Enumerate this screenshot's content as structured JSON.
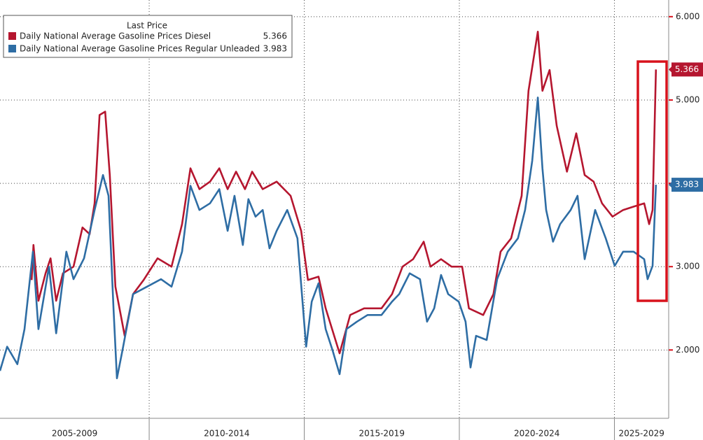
{
  "chart_data": {
    "type": "line",
    "legend_title": "Last Price",
    "series": [
      {
        "name": "Daily National Average Gasoline Prices Diesel",
        "color": "#b5162f",
        "x": [
          2006.21,
          2006.27,
          2006.43,
          2006.66,
          2006.82,
          2007.0,
          2007.22,
          2007.56,
          2007.85,
          2008.08,
          2008.24,
          2008.4,
          2008.58,
          2008.73,
          2008.91,
          2009.21,
          2009.48,
          2009.82,
          2010.27,
          2010.72,
          2011.06,
          2011.33,
          2011.62,
          2011.96,
          2012.26,
          2012.53,
          2012.8,
          2013.09,
          2013.32,
          2013.66,
          2014.11,
          2014.56,
          2014.9,
          2015.12,
          2015.46,
          2015.69,
          2016.14,
          2016.48,
          2016.93,
          2017.49,
          2017.83,
          2018.17,
          2018.51,
          2018.85,
          2019.07,
          2019.41,
          2019.75,
          2020.09,
          2020.31,
          2020.77,
          2021.1,
          2021.33,
          2021.67,
          2022.01,
          2022.23,
          2022.53,
          2022.68,
          2022.91,
          2023.14,
          2023.47,
          2023.77,
          2024.04,
          2024.33,
          2024.6,
          2024.94,
          2025.28,
          2025.62,
          2025.96,
          2026.12,
          2026.23,
          2026.34
        ],
        "values": [
          2.84,
          3.26,
          2.59,
          2.92,
          3.1,
          2.59,
          2.92,
          3.0,
          3.47,
          3.39,
          3.76,
          4.82,
          4.86,
          4.1,
          2.76,
          2.17,
          2.67,
          2.84,
          3.1,
          3.0,
          3.51,
          4.18,
          3.93,
          4.02,
          4.18,
          3.93,
          4.14,
          3.93,
          4.14,
          3.93,
          4.02,
          3.85,
          3.43,
          2.84,
          2.88,
          2.5,
          1.96,
          2.42,
          2.5,
          2.5,
          2.67,
          3.0,
          3.09,
          3.3,
          3.0,
          3.09,
          3.0,
          3.0,
          2.5,
          2.42,
          2.67,
          3.18,
          3.34,
          3.85,
          5.11,
          5.82,
          5.11,
          5.36,
          4.69,
          4.14,
          4.6,
          4.1,
          4.02,
          3.76,
          3.6,
          3.68,
          3.72,
          3.76,
          3.51,
          3.68,
          5.366
        ]
      },
      {
        "name": "Daily National Average Gasoline Prices Regular Unleaded",
        "color": "#2e6da4",
        "x": [
          2005.19,
          2005.42,
          2005.75,
          2005.98,
          2006.25,
          2006.43,
          2006.77,
          2007.0,
          2007.33,
          2007.56,
          2007.9,
          2008.24,
          2008.51,
          2008.69,
          2008.85,
          2008.96,
          2009.14,
          2009.48,
          2009.93,
          2010.38,
          2010.72,
          2011.06,
          2011.33,
          2011.62,
          2011.96,
          2012.26,
          2012.53,
          2012.75,
          2013.02,
          2013.2,
          2013.43,
          2013.66,
          2013.88,
          2014.11,
          2014.45,
          2014.78,
          2015.06,
          2015.24,
          2015.46,
          2015.69,
          2015.91,
          2016.14,
          2016.36,
          2016.7,
          2017.04,
          2017.49,
          2017.83,
          2018.06,
          2018.4,
          2018.73,
          2018.96,
          2019.19,
          2019.41,
          2019.64,
          2019.98,
          2020.2,
          2020.36,
          2020.54,
          2020.88,
          2021.22,
          2021.56,
          2021.89,
          2022.12,
          2022.35,
          2022.53,
          2022.68,
          2022.8,
          2023.02,
          2023.25,
          2023.59,
          2023.81,
          2024.04,
          2024.38,
          2024.72,
          2025.01,
          2025.28,
          2025.62,
          2025.96,
          2026.07,
          2026.23,
          2026.34
        ],
        "values": [
          1.75,
          2.04,
          1.83,
          2.25,
          3.18,
          2.25,
          3.0,
          2.2,
          3.18,
          2.85,
          3.1,
          3.68,
          4.1,
          3.85,
          2.5,
          1.66,
          2.0,
          2.67,
          2.76,
          2.85,
          2.76,
          3.18,
          3.97,
          3.68,
          3.76,
          3.93,
          3.43,
          3.85,
          3.26,
          3.81,
          3.6,
          3.68,
          3.22,
          3.43,
          3.68,
          3.34,
          2.04,
          2.58,
          2.8,
          2.25,
          2.0,
          1.71,
          2.25,
          2.34,
          2.42,
          2.42,
          2.58,
          2.67,
          2.92,
          2.85,
          2.34,
          2.5,
          2.9,
          2.67,
          2.58,
          2.34,
          1.79,
          2.17,
          2.12,
          2.85,
          3.18,
          3.34,
          3.68,
          4.27,
          5.03,
          4.18,
          3.68,
          3.3,
          3.51,
          3.68,
          3.85,
          3.09,
          3.68,
          3.34,
          3.01,
          3.18,
          3.18,
          3.09,
          2.85,
          3.01,
          3.983
        ]
      }
    ],
    "xlim": [
      2005.19,
      2026.75
    ],
    "x_periods": [
      {
        "label": "2005-2009",
        "start": 2005,
        "end": 2010
      },
      {
        "label": "2010-2014",
        "start": 2010,
        "end": 2015
      },
      {
        "label": "2015-2019",
        "start": 2015,
        "end": 2020
      },
      {
        "label": "2020-2024",
        "start": 2020,
        "end": 2025
      },
      {
        "label": "2025-2029",
        "start": 2025,
        "end": 2030
      }
    ],
    "ylim": [
      1.18,
      6.2
    ],
    "yticks": [
      {
        "value": 2,
        "label": "2.000"
      },
      {
        "value": 3,
        "label": "3.000"
      },
      {
        "value": 4,
        "label": "4.000"
      },
      {
        "value": 5,
        "label": "5.000"
      },
      {
        "value": 6,
        "label": "6.000"
      }
    ],
    "grid": true
  }
}
